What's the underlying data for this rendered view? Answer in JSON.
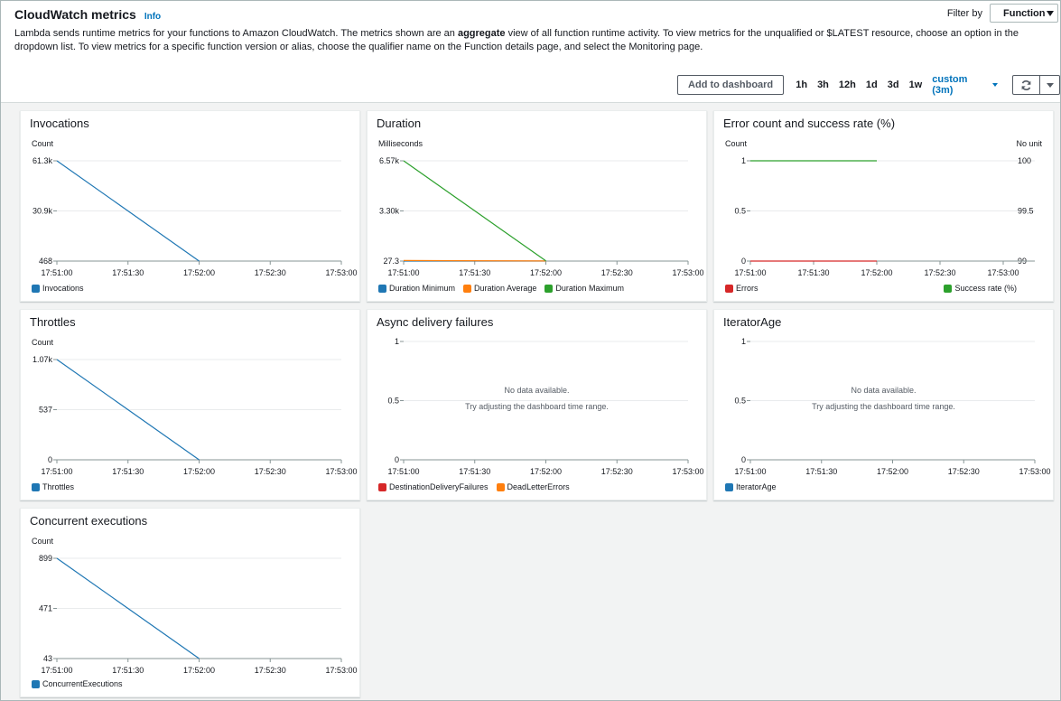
{
  "header": {
    "title": "CloudWatch metrics",
    "info": "Info",
    "filter_label": "Filter by",
    "filter_value": "Function",
    "desc_part1": "Lambda sends runtime metrics for your functions to Amazon CloudWatch. The metrics shown are an ",
    "desc_bold": "aggregate",
    "desc_part2": " view of all function runtime activity. To view metrics for the unqualified or $LATEST resource, choose an option in the dropdown list. To view metrics for a specific function version or alias, choose the qualifier name on the Function details page, and select the Monitoring page."
  },
  "toolbar": {
    "add_dashboard": "Add to dashboard",
    "ranges": [
      "1h",
      "3h",
      "12h",
      "1d",
      "3d",
      "1w"
    ],
    "custom": "custom (3m)"
  },
  "colors": {
    "blue": "#1f77b4",
    "orange": "#ff7f0e",
    "green": "#2ca02c",
    "red": "#d62728"
  },
  "panels": {
    "invocations": {
      "title": "Invocations",
      "unit": "Count",
      "legend": [
        {
          "name": "Invocations",
          "color": "#1f77b4"
        }
      ],
      "chart_data": {
        "type": "line",
        "x": [
          "17:51:00",
          "17:51:30",
          "17:52:00",
          "17:52:30",
          "17:53:00"
        ],
        "yticks": [
          "61.3k",
          "30.9k",
          "468"
        ],
        "ylim": [
          468,
          61300
        ],
        "series": [
          {
            "name": "Invocations",
            "color": "#1f77b4",
            "points": [
              [
                0,
                61300
              ],
              [
                2,
                468
              ]
            ]
          }
        ]
      }
    },
    "duration": {
      "title": "Duration",
      "unit": "Milliseconds",
      "legend": [
        {
          "name": "Duration Minimum",
          "color": "#1f77b4"
        },
        {
          "name": "Duration Average",
          "color": "#ff7f0e"
        },
        {
          "name": "Duration Maximum",
          "color": "#2ca02c"
        }
      ],
      "chart_data": {
        "type": "line",
        "x": [
          "17:51:00",
          "17:51:30",
          "17:52:00",
          "17:52:30",
          "17:53:00"
        ],
        "yticks": [
          "6.57k",
          "3.30k",
          "27.3"
        ],
        "ylim": [
          27.3,
          6570
        ],
        "series": [
          {
            "name": "Duration Minimum",
            "color": "#1f77b4",
            "points": [
              [
                0,
                27.3
              ],
              [
                2,
                27.3
              ]
            ]
          },
          {
            "name": "Duration Average",
            "color": "#ff7f0e",
            "points": [
              [
                0,
                60
              ],
              [
                2,
                35
              ]
            ]
          },
          {
            "name": "Duration Maximum",
            "color": "#2ca02c",
            "points": [
              [
                0,
                6570
              ],
              [
                2,
                40
              ]
            ]
          }
        ]
      }
    },
    "errors": {
      "title": "Error count and success rate (%)",
      "unit": "Count",
      "unit_right": "No unit",
      "legend": [
        {
          "name": "Errors",
          "color": "#d62728"
        }
      ],
      "legend_right": {
        "name": "Success rate (%)",
        "color": "#2ca02c"
      },
      "chart_data": {
        "type": "line",
        "x": [
          "17:51:00",
          "17:51:30",
          "17:52:00",
          "17:52:30",
          "17:53:00"
        ],
        "yticks": [
          "1",
          "0.5",
          "0"
        ],
        "ylim": [
          0,
          1
        ],
        "yticks_right": [
          "100",
          "99.5",
          "99"
        ],
        "ylim_right": [
          99,
          100
        ],
        "series": [
          {
            "name": "Errors",
            "color": "#d62728",
            "points": [
              [
                0,
                0
              ],
              [
                2,
                0
              ]
            ]
          },
          {
            "name": "Success rate (%)",
            "color": "#2ca02c",
            "axis": "right",
            "points": [
              [
                0,
                100
              ],
              [
                2,
                100
              ]
            ]
          }
        ]
      }
    },
    "throttles": {
      "title": "Throttles",
      "unit": "Count",
      "legend": [
        {
          "name": "Throttles",
          "color": "#1f77b4"
        }
      ],
      "chart_data": {
        "type": "line",
        "x": [
          "17:51:00",
          "17:51:30",
          "17:52:00",
          "17:52:30",
          "17:53:00"
        ],
        "yticks": [
          "1.07k",
          "537",
          "0"
        ],
        "ylim": [
          0,
          1070
        ],
        "series": [
          {
            "name": "Throttles",
            "color": "#1f77b4",
            "points": [
              [
                0,
                1070
              ],
              [
                2,
                0
              ]
            ]
          }
        ]
      }
    },
    "async": {
      "title": "Async delivery failures",
      "nodata1": "No data available.",
      "nodata2": "Try adjusting the dashboard time range.",
      "legend": [
        {
          "name": "DestinationDeliveryFailures",
          "color": "#d62728"
        },
        {
          "name": "DeadLetterErrors",
          "color": "#ff7f0e"
        }
      ],
      "chart_data": {
        "type": "line",
        "x": [
          "17:51:00",
          "17:51:30",
          "17:52:00",
          "17:52:30",
          "17:53:00"
        ],
        "yticks": [
          "1",
          "0.5",
          "0"
        ],
        "ylim": [
          0,
          1
        ],
        "series": []
      }
    },
    "iterator": {
      "title": "IteratorAge",
      "nodata1": "No data available.",
      "nodata2": "Try adjusting the dashboard time range.",
      "legend": [
        {
          "name": "IteratorAge",
          "color": "#1f77b4"
        }
      ],
      "chart_data": {
        "type": "line",
        "x": [
          "17:51:00",
          "17:51:30",
          "17:52:00",
          "17:52:30",
          "17:53:00"
        ],
        "yticks": [
          "1",
          "0.5",
          "0"
        ],
        "ylim": [
          0,
          1
        ],
        "series": []
      }
    },
    "concurrent": {
      "title": "Concurrent executions",
      "unit": "Count",
      "legend": [
        {
          "name": "ConcurrentExecutions",
          "color": "#1f77b4"
        }
      ],
      "chart_data": {
        "type": "line",
        "x": [
          "17:51:00",
          "17:51:30",
          "17:52:00",
          "17:52:30",
          "17:53:00"
        ],
        "yticks": [
          "899",
          "471",
          "43"
        ],
        "ylim": [
          43,
          899
        ],
        "series": [
          {
            "name": "ConcurrentExecutions",
            "color": "#1f77b4",
            "points": [
              [
                0,
                899
              ],
              [
                2,
                43
              ]
            ]
          }
        ]
      }
    }
  }
}
